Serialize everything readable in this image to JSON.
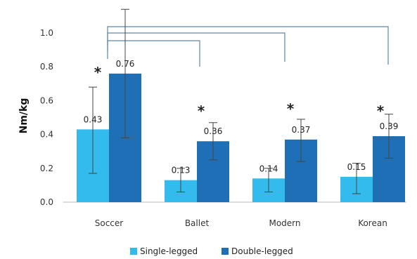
{
  "chart_data": {
    "type": "bar",
    "title": "",
    "ylabel": "Nm/kg",
    "xlabel": "",
    "categories": [
      "Soccer",
      "Ballet",
      "Modern",
      "Korean"
    ],
    "ylim": [
      0,
      1.0
    ],
    "yticks": [
      "0.0",
      "0.2",
      "0.4",
      "0.6",
      "0.8",
      "1.0"
    ],
    "series": [
      {
        "name": "Single-legged",
        "color": "#33BBEE",
        "values": [
          0.43,
          0.13,
          0.14,
          0.15
        ],
        "value_labels": [
          "0.43",
          "0.13",
          "0.14",
          "0.15"
        ],
        "error_low": [
          0.17,
          0.06,
          0.06,
          0.05
        ],
        "error_high": [
          0.68,
          0.2,
          0.2,
          0.23
        ]
      },
      {
        "name": "Double-legged",
        "color": "#1E6FB5",
        "values": [
          0.76,
          0.36,
          0.37,
          0.39
        ],
        "value_labels": [
          "0.76",
          "0.36",
          "0.37",
          "0.39"
        ],
        "error_low": [
          0.38,
          0.25,
          0.24,
          0.26
        ],
        "error_high": [
          1.14,
          0.47,
          0.49,
          0.52
        ]
      }
    ],
    "significance_marker": "*",
    "legend": "bottom",
    "grid": false
  }
}
